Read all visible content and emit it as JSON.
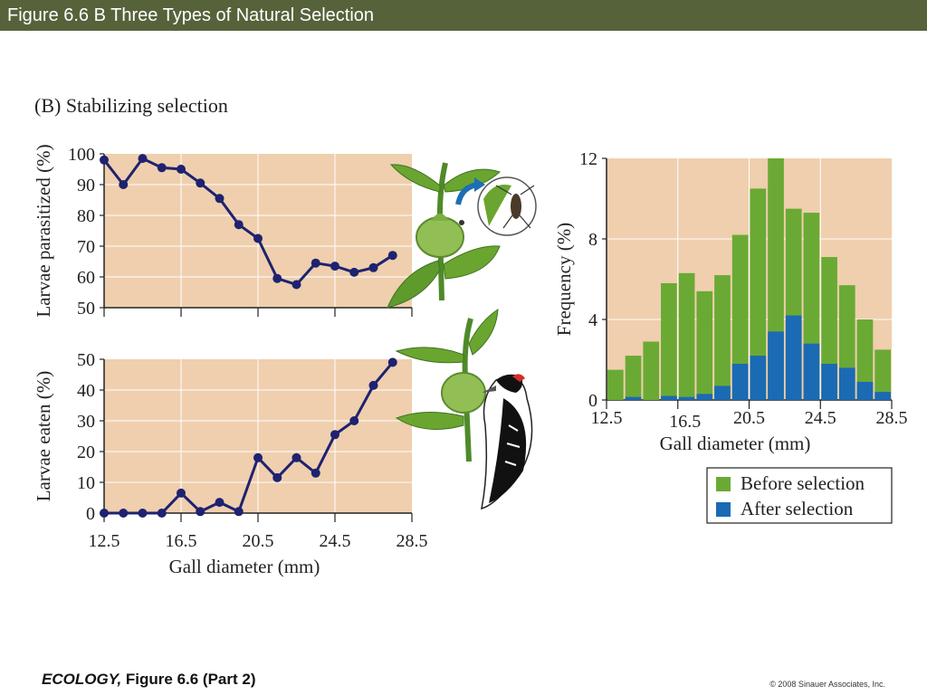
{
  "header": {
    "title": "Figure 6.6 B  Three Types of Natural Selection"
  },
  "panel_label": "(B)  Stabilizing selection",
  "footer": {
    "book": "ECOLOGY,",
    "figure": " Figure 6.6 (Part 2)",
    "copyright": "© 2008 Sinauer Associates, Inc."
  },
  "colors": {
    "plot_bg": "#efcfae",
    "line": "#1e2270",
    "before": "#6aaa34",
    "after": "#1b6ab4",
    "header": "#56623a"
  },
  "chart_data": [
    {
      "type": "line",
      "ylabel": "Larvae parasitized (%)",
      "xlabel": "",
      "xlim": [
        12.5,
        28.5
      ],
      "ylim": [
        50,
        100
      ],
      "yticks": [
        50,
        60,
        70,
        80,
        90,
        100
      ],
      "xticks": [
        12.5,
        16.5,
        20.5,
        24.5,
        28.5
      ],
      "grid": true,
      "x": [
        12.5,
        13.5,
        14.5,
        15.5,
        16.5,
        17.5,
        18.5,
        19.5,
        20.5,
        21.5,
        22.5,
        23.5,
        24.5,
        25.5,
        26.5,
        27.5
      ],
      "values": [
        98,
        90,
        98.5,
        95.5,
        95,
        90.5,
        85.5,
        77,
        72.5,
        59.5,
        57.5,
        64.5,
        63.5,
        61.5,
        63,
        67
      ]
    },
    {
      "type": "line",
      "ylabel": "Larvae eaten (%)",
      "xlabel": "Gall diameter (mm)",
      "xlim": [
        12.5,
        28.5
      ],
      "ylim": [
        0,
        50
      ],
      "yticks": [
        0,
        10,
        20,
        30,
        40,
        50
      ],
      "xticks": [
        12.5,
        16.5,
        20.5,
        24.5,
        28.5
      ],
      "grid": true,
      "x": [
        12.5,
        13.5,
        14.5,
        15.5,
        16.5,
        17.5,
        18.5,
        19.5,
        20.5,
        21.5,
        22.5,
        23.5,
        24.5,
        25.5,
        26.5,
        27.5
      ],
      "values": [
        0,
        0,
        0,
        0,
        6.5,
        0.5,
        3.5,
        0.5,
        18,
        11.5,
        18,
        13,
        25.5,
        30,
        41.5,
        49
      ]
    },
    {
      "type": "bar",
      "ylabel": "Frequency (%)",
      "xlabel": "Gall diameter (mm)",
      "xlim": [
        12.5,
        28.5
      ],
      "ylim": [
        0,
        12
      ],
      "yticks": [
        0,
        4,
        8,
        12
      ],
      "xticks": [
        12.5,
        16.5,
        20.5,
        24.5,
        28.5
      ],
      "grid": true,
      "legend_position": "bottom-right",
      "categories": [
        12.5,
        13.5,
        14.5,
        15.5,
        16.5,
        17.5,
        18.5,
        19.5,
        20.5,
        21.5,
        22.5,
        23.5,
        24.5,
        25.5,
        26.5,
        27.5
      ],
      "series": [
        {
          "name": "Before selection",
          "values": [
            1.5,
            2.2,
            2.9,
            5.8,
            6.3,
            5.4,
            6.2,
            8.2,
            10.5,
            12,
            9.5,
            9.3,
            7.1,
            5.7,
            4.0,
            2.5
          ]
        },
        {
          "name": "After selection",
          "values": [
            0,
            0.15,
            0,
            0.2,
            0.15,
            0.3,
            0.7,
            1.8,
            2.2,
            3.4,
            4.2,
            2.8,
            1.8,
            1.6,
            0.9,
            0.4
          ]
        }
      ]
    }
  ]
}
